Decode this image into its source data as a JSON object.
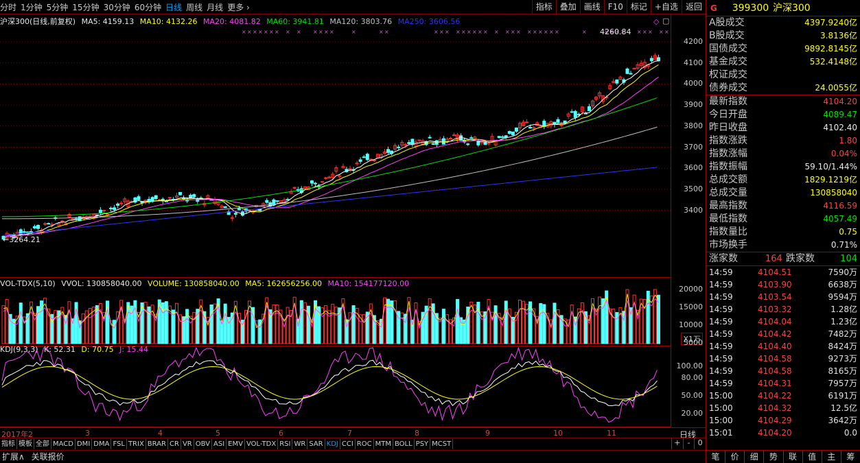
{
  "toolbar": {
    "periods": [
      "分时",
      "1分钟",
      "5分钟",
      "15分钟",
      "30分钟",
      "60分钟",
      "日线",
      "周线",
      "月线",
      "更多 ›"
    ],
    "active_period": "日线",
    "tools": [
      "指标",
      "叠加",
      "画线",
      "F10",
      "标记",
      "+自选",
      "返回"
    ]
  },
  "price": {
    "title": "沪深300(日线,前复权)",
    "ma5": "MA5: 4159.13",
    "ma10": "MA10: 4132.26",
    "ma20": "MA20: 4081.82",
    "ma60": "MA60: 3941.81",
    "ma120": "MA120: 3803.76",
    "ma250": "MA250: 3606.56",
    "axis": [
      "4200",
      "4100",
      "4000",
      "3900",
      "3800",
      "3700",
      "3600",
      "3500",
      "3400"
    ],
    "high_mark": "4260.84",
    "low_mark": "3264.21"
  },
  "volume": {
    "title": "VOL-TDX(5,10)",
    "vvol": "VVOL: 130858040.00",
    "volume": "VOLUME: 130858040.00",
    "ma5": "MA5: 162656256.00",
    "ma10": "MA10: 154177120.00",
    "axis": [
      "20000",
      "15000",
      "10000",
      "5000"
    ],
    "unit": "X1万"
  },
  "kdj": {
    "title": "KDJ(9,3,3)",
    "k": "K: 52.31",
    "d": "D: 70.75",
    "j": "J: 15.44",
    "axis": [
      "100.00",
      "80.00",
      "50.00",
      "20.00"
    ]
  },
  "dates": [
    "2017年2",
    "3",
    "4",
    "5",
    "6",
    "7",
    "8",
    "9",
    "10",
    "11"
  ],
  "period_label": "日线",
  "indicator_tabs": [
    "指标",
    "模板",
    "全部",
    "MACD",
    "DMI",
    "DMA",
    "FSL",
    "TRIX",
    "BRAR",
    "CR",
    "VR",
    "OBV",
    "ASI",
    "EMV",
    "VOL-TDX",
    "RSI",
    "WR",
    "SAR",
    "KDJ",
    "CCI",
    "ROC",
    "MTM",
    "BOLL",
    "PSY",
    "MCST"
  ],
  "active_indicator": "KDJ",
  "bottom": [
    "扩展∧",
    "关联报价"
  ],
  "nav_buttons": [
    "+",
    "-",
    "0"
  ],
  "right": {
    "code": "399300",
    "name": "沪深300",
    "turnover": [
      {
        "k": "A股成交",
        "v": "4397.9240亿"
      },
      {
        "k": "B股成交",
        "v": "3.8136亿"
      },
      {
        "k": "国债成交",
        "v": "9892.8145亿"
      },
      {
        "k": "基金成交",
        "v": "532.4148亿"
      },
      {
        "k": "权证成交",
        "v": ""
      },
      {
        "k": "债券成交",
        "v": "24.0055亿"
      }
    ],
    "quote": [
      {
        "k": "最新指数",
        "v": "4104.20",
        "c": "r"
      },
      {
        "k": "今日开盘",
        "v": "4089.47",
        "c": "g"
      },
      {
        "k": "昨日收盘",
        "v": "4102.40",
        "c": "w"
      },
      {
        "k": "指数涨跌",
        "v": "1.80",
        "c": "r"
      },
      {
        "k": "指数涨幅",
        "v": "0.04%",
        "c": "r"
      },
      {
        "k": "指数振幅",
        "v": "59.10/1.44%",
        "c": "w"
      },
      {
        "k": "总成交额",
        "v": "1829.1219亿",
        "c": "y"
      },
      {
        "k": "总成交量",
        "v": "130858040",
        "c": "y"
      },
      {
        "k": "最高指数",
        "v": "4116.59",
        "c": "r"
      },
      {
        "k": "最低指数",
        "v": "4057.49",
        "c": "g"
      },
      {
        "k": "指数量比",
        "v": "0.75",
        "c": "y"
      },
      {
        "k": "市场换手",
        "v": "0.71%",
        "c": "w"
      }
    ],
    "breadth": {
      "up_label": "涨家数",
      "up": "164",
      "down_label": "跌家数",
      "down": "104"
    },
    "ticks": [
      {
        "t": "14:59",
        "p": "4104.51",
        "q": "7590万"
      },
      {
        "t": "14:59",
        "p": "4103.90",
        "q": "6638万"
      },
      {
        "t": "14:59",
        "p": "4103.54",
        "q": "9594万"
      },
      {
        "t": "14:59",
        "p": "4103.32",
        "q": "1.28亿"
      },
      {
        "t": "14:59",
        "p": "4104.04",
        "q": "1.23亿"
      },
      {
        "t": "14:59",
        "p": "4104.42",
        "q": "7482万"
      },
      {
        "t": "14:59",
        "p": "4104.40",
        "q": "8424万"
      },
      {
        "t": "14:59",
        "p": "4104.58",
        "q": "9273万"
      },
      {
        "t": "14:59",
        "p": "4104.58",
        "q": "8165万"
      },
      {
        "t": "14:59",
        "p": "4104.31",
        "q": "7957万"
      },
      {
        "t": "15:00",
        "p": "4104.22",
        "q": "6191万"
      },
      {
        "t": "15:00",
        "p": "4104.32",
        "q": "12.5亿"
      },
      {
        "t": "15:00",
        "p": "4104.29",
        "q": "3642万"
      },
      {
        "t": "15:01",
        "p": "4104.20",
        "q": "0.0"
      }
    ],
    "footer": [
      "笔",
      "价",
      "细",
      "势",
      "联",
      "值",
      "主",
      "筹"
    ]
  },
  "colors": {
    "up": "#ff3030",
    "down": "#54ffff",
    "ma5": "#ffffff",
    "ma10": "#ffff00",
    "ma20": "#ff40ff",
    "ma60": "#00e000",
    "ma120": "#c0c0c0",
    "ma250": "#3030ff",
    "grid": "#7a0000"
  }
}
